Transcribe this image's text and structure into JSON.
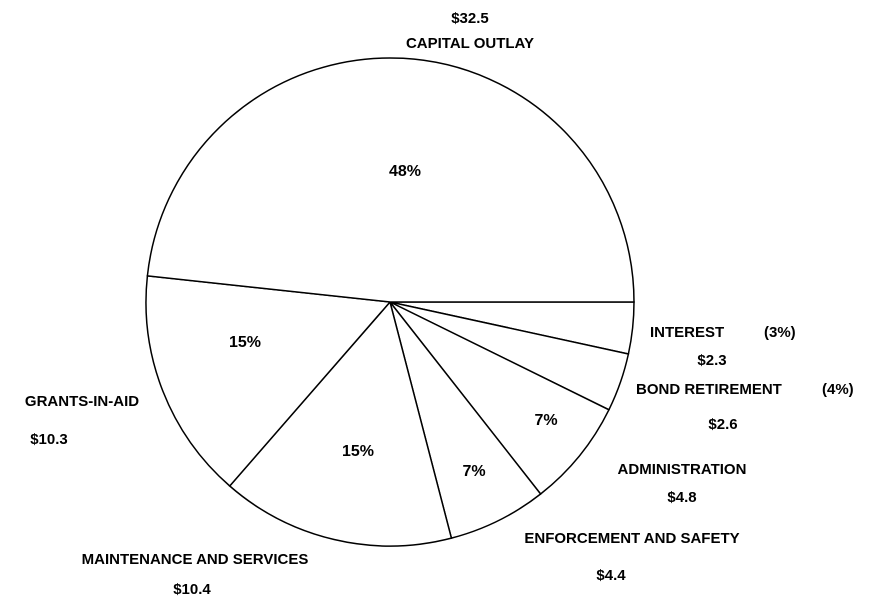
{
  "chart_data": {
    "type": "pie",
    "title": "",
    "slices": [
      {
        "name": "CAPITAL OUTLAY",
        "value_label": "$32.5",
        "value": 32.5,
        "percent_label": "48%"
      },
      {
        "name": "INTEREST",
        "value_label": "$2.3",
        "value": 2.3,
        "percent_label": "(3%)"
      },
      {
        "name": "BOND RETIREMENT",
        "value_label": "$2.6",
        "value": 2.6,
        "percent_label": "(4%)"
      },
      {
        "name": "ADMINISTRATION",
        "value_label": "$4.8",
        "value": 4.8,
        "percent_label": "7%"
      },
      {
        "name": "ENFORCEMENT AND SAFETY",
        "value_label": "$4.4",
        "value": 4.4,
        "percent_label": "7%"
      },
      {
        "name": "MAINTENANCE AND SERVICES",
        "value_label": "$10.4",
        "value": 10.4,
        "percent_label": "15%"
      },
      {
        "name": "GRANTS-IN-AID",
        "value_label": "$10.3",
        "value": 10.3,
        "percent_label": "15%"
      }
    ],
    "legend": "none",
    "labels_position": "outside"
  }
}
